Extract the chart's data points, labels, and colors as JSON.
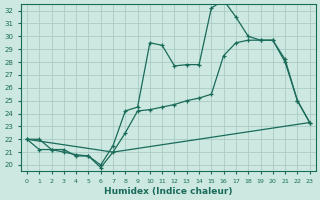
{
  "xlabel": "Humidex (Indice chaleur)",
  "bg_color": "#cce8e0",
  "grid_color": "#aaccC4",
  "line_color": "#1a6b5a",
  "xlim": [
    -0.5,
    23.5
  ],
  "ylim": [
    19.5,
    32.5
  ],
  "xticks": [
    0,
    1,
    2,
    3,
    4,
    5,
    6,
    7,
    8,
    9,
    10,
    11,
    12,
    13,
    14,
    15,
    16,
    17,
    18,
    19,
    20,
    21,
    22,
    23
  ],
  "yticks": [
    20,
    21,
    22,
    23,
    24,
    25,
    26,
    27,
    28,
    29,
    30,
    31,
    32
  ],
  "curve1_x": [
    0,
    1,
    2,
    3,
    4,
    5,
    6,
    7,
    8,
    9,
    10,
    11,
    12,
    13,
    14,
    15,
    16,
    17,
    18,
    19,
    20,
    21,
    22,
    23
  ],
  "curve1_y": [
    22.0,
    22.0,
    21.2,
    21.2,
    20.7,
    20.7,
    20.0,
    21.5,
    24.2,
    24.5,
    29.5,
    29.3,
    27.7,
    27.8,
    27.8,
    32.2,
    32.8,
    31.5,
    30.0,
    29.7,
    29.7,
    28.2,
    25.0,
    23.3
  ],
  "curve2_x": [
    0,
    1,
    2,
    3,
    4,
    5,
    6,
    7,
    8,
    9,
    10,
    11,
    12,
    13,
    14,
    15,
    16,
    17,
    18,
    19,
    20,
    21,
    22,
    23
  ],
  "curve2_y": [
    22.0,
    21.2,
    21.2,
    21.0,
    20.8,
    20.7,
    19.8,
    21.0,
    22.5,
    24.2,
    24.3,
    24.5,
    24.7,
    25.0,
    25.2,
    25.5,
    28.5,
    29.5,
    29.7,
    29.7,
    29.7,
    28.0,
    25.0,
    23.3
  ],
  "line3_x": [
    0,
    7,
    23
  ],
  "line3_y": [
    22.0,
    21.0,
    23.3
  ]
}
